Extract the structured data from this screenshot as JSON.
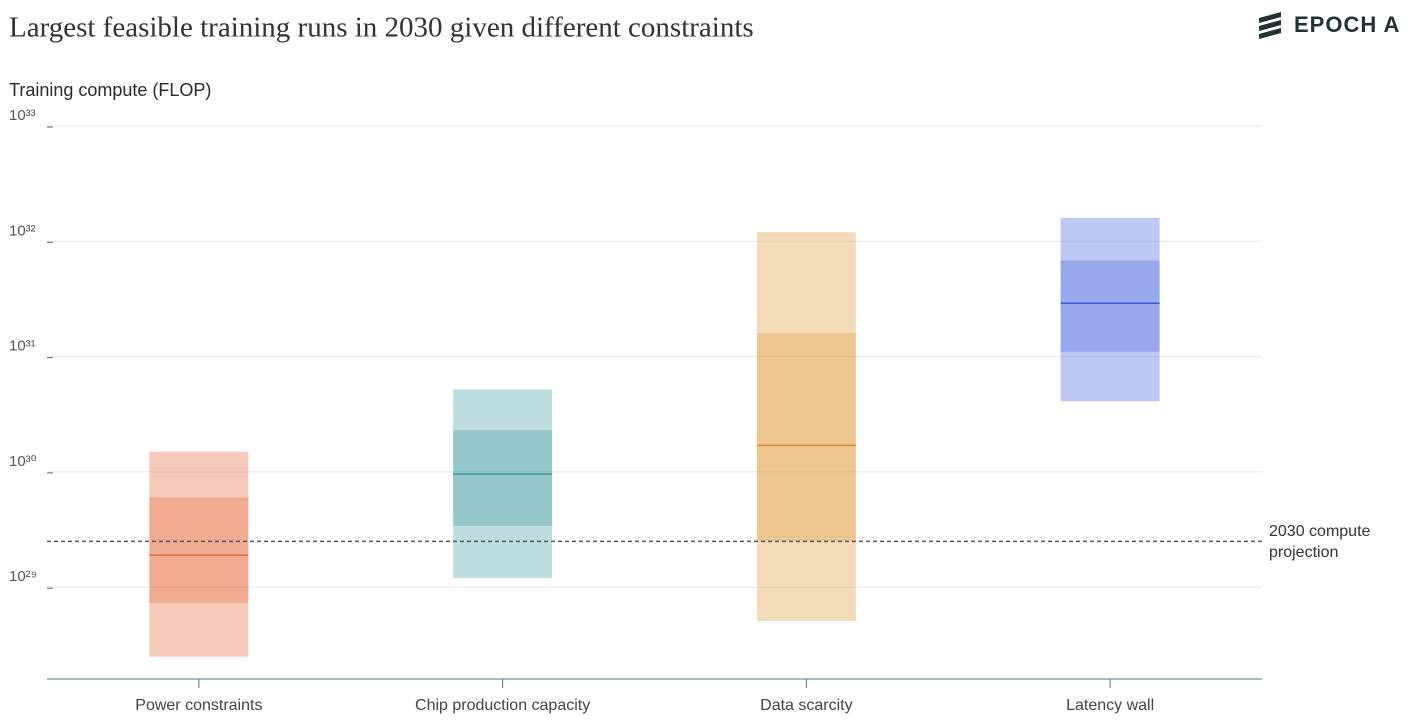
{
  "chart_data": {
    "type": "box",
    "title": "Largest feasible training runs in 2030 given different constraints",
    "brand": "EPOCH A",
    "y_label": "Training compute (FLOP)",
    "log_y": true,
    "grid": true,
    "ylim": [
      1.6e+28,
      1e+33
    ],
    "yticks": [
      {
        "value": 1e+29,
        "label": "10²⁹"
      },
      {
        "value": 1e+30,
        "label": "10³⁰"
      },
      {
        "value": 1e+31,
        "label": "10³¹"
      },
      {
        "value": 1e+32,
        "label": "10³²"
      },
      {
        "value": 1e+33,
        "label": "10³³"
      }
    ],
    "categories": [
      "Power constraints",
      "Chip production capacity",
      "Data scarcity",
      "Latency wall"
    ],
    "boxes": [
      {
        "color": "#e87a52",
        "median_color": "#e06a3f",
        "low": 2.5e+28,
        "q1": 7.3e+28,
        "median": 1.9e+29,
        "q3": 6e+29,
        "high": 1.5e+30
      },
      {
        "color": "#5aaaac",
        "median_color": "#3f9d9c",
        "low": 1.2e+29,
        "q1": 3.4e+29,
        "median": 9.6e+29,
        "q3": 2.3e+30,
        "high": 5.2e+30
      },
      {
        "color": "#e3a54f",
        "median_color": "#d98d28",
        "low": 5.1e+28,
        "q1": 2.5e+29,
        "median": 1.7e+30,
        "q3": 1.6e+31,
        "high": 1.2e+32
      },
      {
        "color": "#5c78e0",
        "median_color": "#3a5bd9",
        "low": 4.1e+30,
        "q1": 1.1e+31,
        "median": 2.9e+31,
        "q3": 6.8e+31,
        "high": 1.6e+32
      }
    ],
    "reference_line": {
      "value": 2.5e+29,
      "label": "2030 compute projection",
      "color": "#4a5a66"
    }
  }
}
